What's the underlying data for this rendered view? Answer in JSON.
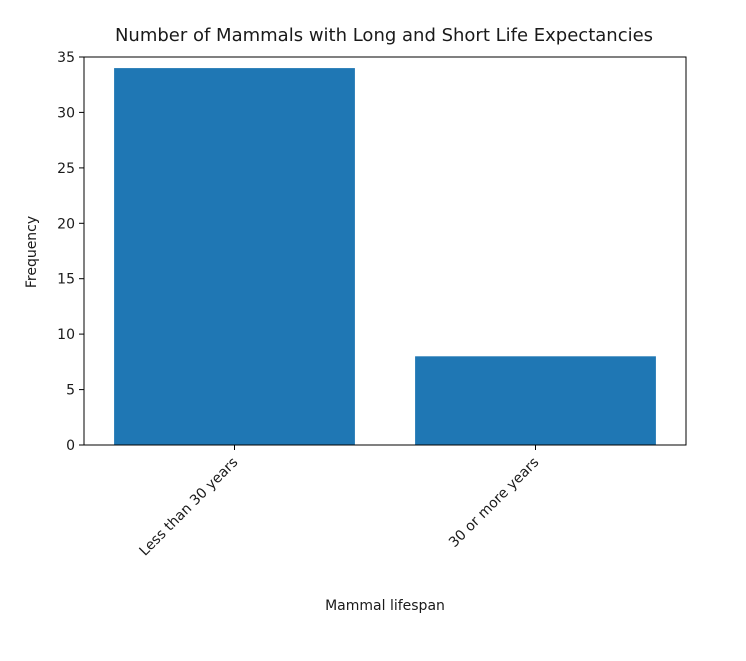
{
  "chart_data": {
    "type": "bar",
    "title": "Number of Mammals with Long and Short Life Expectancies",
    "xlabel": "Mammal lifespan",
    "ylabel": "Frequency",
    "categories": [
      "Less than 30 years",
      "30 or more years"
    ],
    "values": [
      34,
      8
    ],
    "ylim": [
      0,
      35
    ],
    "yticks": [
      0,
      5,
      10,
      15,
      20,
      25,
      30,
      35
    ],
    "grid": false,
    "bar_color": "#1f77b4",
    "xtick_rotation_deg": 45
  }
}
